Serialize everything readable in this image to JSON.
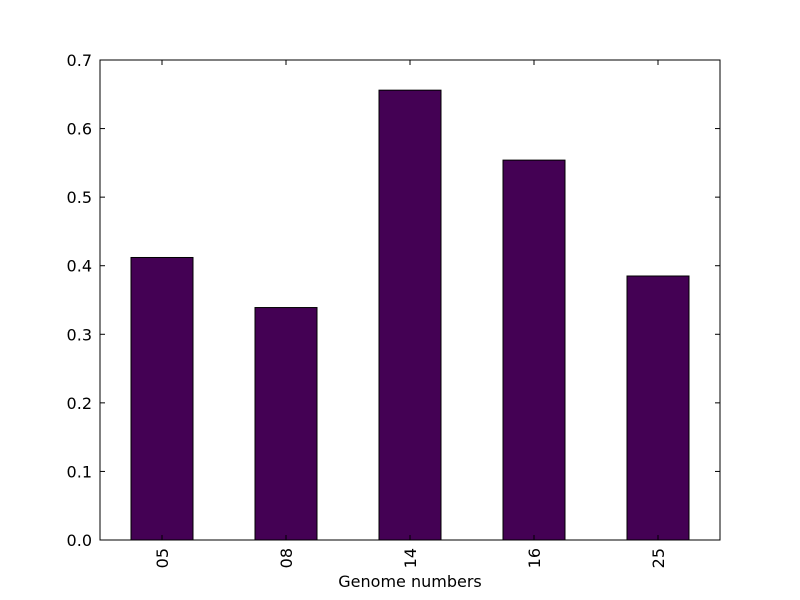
{
  "chart_data": {
    "type": "bar",
    "title": "",
    "xlabel": "Genome numbers",
    "ylabel": "",
    "categories": [
      "05",
      "08",
      "14",
      "16",
      "25"
    ],
    "values": [
      0.412,
      0.339,
      0.656,
      0.554,
      0.385
    ],
    "ylim": [
      0,
      0.7
    ],
    "yticks": [
      0.0,
      0.1,
      0.2,
      0.3,
      0.4,
      0.5,
      0.6,
      0.7
    ],
    "ytick_labels": [
      "0.0",
      "0.1",
      "0.2",
      "0.3",
      "0.4",
      "0.5",
      "0.6",
      "0.7"
    ],
    "grid": false,
    "legend": "none",
    "bar_color": "#440154",
    "edge_color": "#000000"
  }
}
